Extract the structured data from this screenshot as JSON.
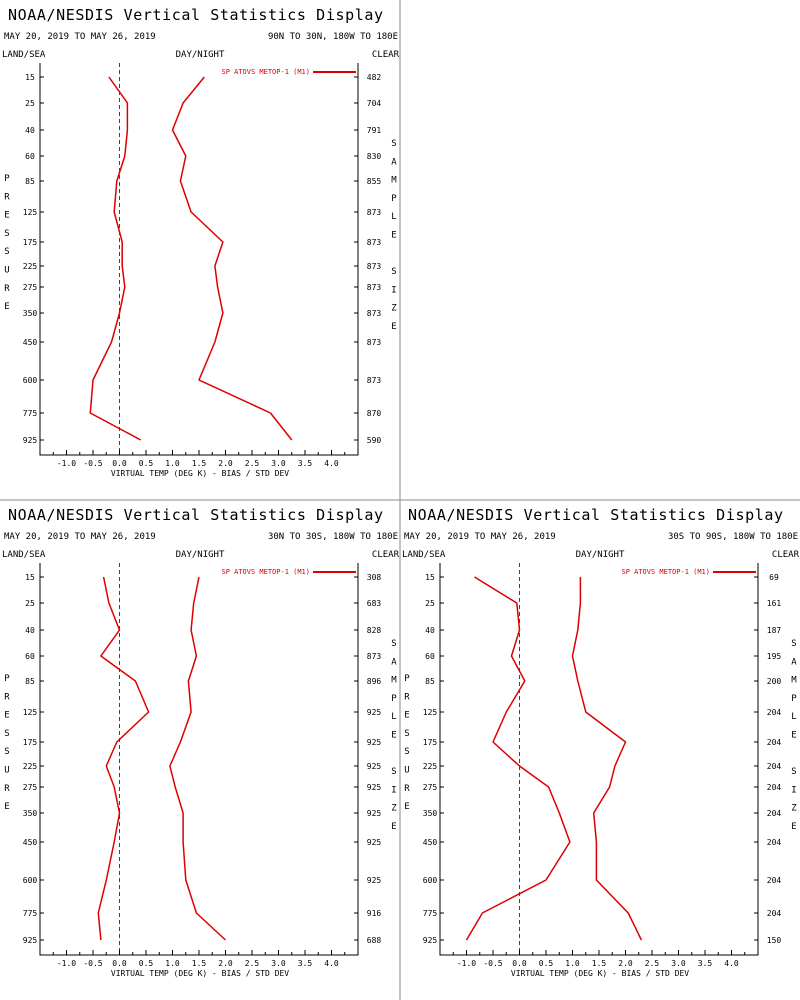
{
  "colors": {
    "series": "#dd0000",
    "axes": "#000000",
    "zero_line": "#3a3a8a",
    "divider": "#888888"
  },
  "panels": [
    {
      "title": "NOAA/NESDIS Vertical Statistics Display",
      "date_range": "MAY 20, 2019 TO MAY 26, 2019",
      "region": "90N TO 30N, 180W TO 180E",
      "land_sea": "LAND/SEA",
      "day_night": "DAY/NIGHT",
      "clear": "CLEAR",
      "left_axis_label": "PRESSURE",
      "right_axis_label": "SAMPLE SIZE",
      "xlabel": "VIRTUAL TEMP (DEG K) - BIAS / STD DEV",
      "legend": "SP ATOVS METOP-1 (M1)",
      "pressure_ticks": [
        "15",
        "25",
        "40",
        "60",
        "85",
        "125",
        "175",
        "225",
        "275",
        "350",
        "450",
        "600",
        "775",
        "925"
      ],
      "x_ticks": [
        "-1.0",
        "-0.5",
        "0.0",
        "0.5",
        "1.0",
        "1.5",
        "2.0",
        "2.5",
        "3.0",
        "3.5",
        "4.0"
      ],
      "xlim": [
        -1.5,
        4.5
      ],
      "sample_sizes": [
        "482",
        "704",
        "791",
        "830",
        "855",
        "873",
        "873",
        "873",
        "873",
        "873",
        "873",
        "873",
        "870",
        "590"
      ],
      "chart_data": {
        "type": "line",
        "ylabel": "PRESSURE",
        "xlabel": "VIRTUAL TEMP (DEG K) - BIAS / STD DEV",
        "series": [
          {
            "name": "BIAS",
            "x": [
              -0.2,
              0.15,
              0.15,
              0.1,
              -0.05,
              -0.1,
              0.05,
              0.05,
              0.1,
              0.0,
              -0.15,
              -0.5,
              -0.55,
              0.4
            ],
            "y": [
              15,
              25,
              40,
              60,
              85,
              125,
              175,
              225,
              275,
              350,
              450,
              600,
              775,
              925
            ]
          },
          {
            "name": "STD DEV",
            "x": [
              1.6,
              1.2,
              1.0,
              1.25,
              1.15,
              1.35,
              1.95,
              1.8,
              1.85,
              1.95,
              1.8,
              1.5,
              2.85,
              3.25
            ],
            "y": [
              15,
              25,
              40,
              60,
              85,
              125,
              175,
              225,
              275,
              350,
              450,
              600,
              775,
              925
            ]
          }
        ]
      }
    },
    {
      "title": "NOAA/NESDIS Vertical Statistics Display",
      "date_range": "MAY 20, 2019 TO MAY 26, 2019",
      "region": "30N TO 30S, 180W TO 180E",
      "land_sea": "LAND/SEA",
      "day_night": "DAY/NIGHT",
      "clear": "CLEAR",
      "left_axis_label": "PRESSURE",
      "right_axis_label": "SAMPLE SIZE",
      "xlabel": "VIRTUAL TEMP (DEG K) - BIAS / STD DEV",
      "legend": "SP ATOVS METOP-1 (M1)",
      "pressure_ticks": [
        "15",
        "25",
        "40",
        "60",
        "85",
        "125",
        "175",
        "225",
        "275",
        "350",
        "450",
        "600",
        "775",
        "925"
      ],
      "x_ticks": [
        "-1.0",
        "-0.5",
        "0.0",
        "0.5",
        "1.0",
        "1.5",
        "2.0",
        "2.5",
        "3.0",
        "3.5",
        "4.0"
      ],
      "xlim": [
        -1.5,
        4.5
      ],
      "sample_sizes": [
        "308",
        "683",
        "828",
        "873",
        "896",
        "925",
        "925",
        "925",
        "925",
        "925",
        "925",
        "925",
        "916",
        "688"
      ],
      "chart_data": {
        "type": "line",
        "ylabel": "PRESSURE",
        "xlabel": "VIRTUAL TEMP (DEG K) - BIAS / STD DEV",
        "series": [
          {
            "name": "BIAS",
            "x": [
              -0.3,
              -0.2,
              0.0,
              -0.35,
              0.3,
              0.55,
              -0.05,
              -0.25,
              -0.1,
              0.0,
              -0.1,
              -0.25,
              -0.4,
              -0.35
            ],
            "y": [
              15,
              25,
              40,
              60,
              85,
              125,
              175,
              225,
              275,
              350,
              450,
              600,
              775,
              925
            ]
          },
          {
            "name": "STD DEV",
            "x": [
              1.5,
              1.4,
              1.35,
              1.45,
              1.3,
              1.35,
              1.15,
              0.95,
              1.05,
              1.2,
              1.2,
              1.25,
              1.45,
              2.0
            ],
            "y": [
              15,
              25,
              40,
              60,
              85,
              125,
              175,
              225,
              275,
              350,
              450,
              600,
              775,
              925
            ]
          }
        ]
      }
    },
    {
      "title": "NOAA/NESDIS Vertical Statistics Display",
      "date_range": "MAY 20, 2019 TO MAY 26, 2019",
      "region": "30S TO 90S, 180W TO 180E",
      "land_sea": "LAND/SEA",
      "day_night": "DAY/NIGHT",
      "clear": "CLEAR",
      "left_axis_label": "PRESSURE",
      "right_axis_label": "SAMPLE SIZE",
      "xlabel": "VIRTUAL TEMP (DEG K) - BIAS / STD DEV",
      "legend": "SP ATOVS METOP-1 (M1)",
      "pressure_ticks": [
        "15",
        "25",
        "40",
        "60",
        "85",
        "125",
        "175",
        "225",
        "275",
        "350",
        "450",
        "600",
        "775",
        "925"
      ],
      "x_ticks": [
        "-1.0",
        "-0.5",
        "0.0",
        "0.5",
        "1.0",
        "1.5",
        "2.0",
        "2.5",
        "3.0",
        "3.5",
        "4.0"
      ],
      "xlim": [
        -1.5,
        4.5
      ],
      "sample_sizes": [
        "69",
        "161",
        "187",
        "195",
        "200",
        "204",
        "204",
        "204",
        "204",
        "204",
        "204",
        "204",
        "204",
        "150"
      ],
      "chart_data": {
        "type": "line",
        "ylabel": "PRESSURE",
        "xlabel": "VIRTUAL TEMP (DEG K) - BIAS / STD DEV",
        "series": [
          {
            "name": "BIAS",
            "x": [
              -0.85,
              -0.05,
              0.0,
              -0.15,
              0.1,
              -0.25,
              -0.5,
              0.0,
              0.55,
              0.75,
              0.95,
              0.5,
              -0.7,
              -1.0
            ],
            "y": [
              15,
              25,
              40,
              60,
              85,
              125,
              175,
              225,
              275,
              350,
              450,
              600,
              775,
              925
            ]
          },
          {
            "name": "STD DEV",
            "x": [
              1.15,
              1.15,
              1.1,
              1.0,
              1.1,
              1.25,
              2.0,
              1.8,
              1.7,
              1.4,
              1.45,
              1.45,
              2.05,
              2.3
            ],
            "y": [
              15,
              25,
              40,
              60,
              85,
              125,
              175,
              225,
              275,
              350,
              450,
              600,
              775,
              925
            ]
          }
        ]
      }
    }
  ]
}
